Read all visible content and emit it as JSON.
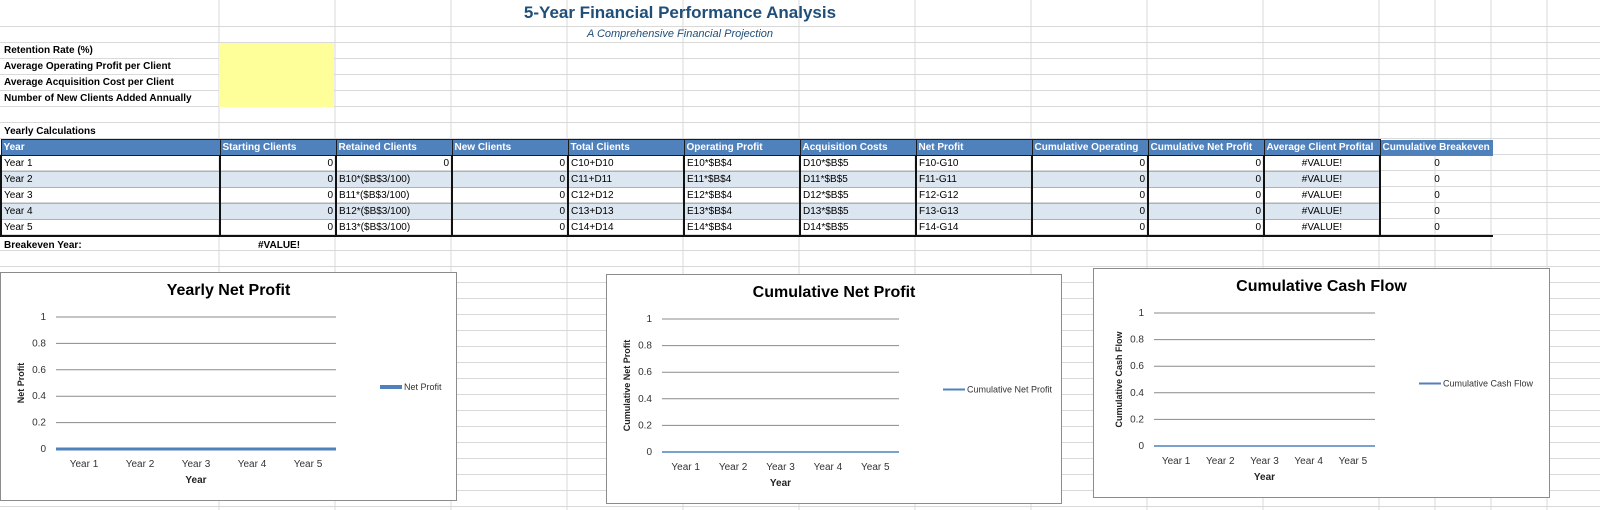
{
  "header": {
    "title": "5-Year Financial Performance Analysis",
    "subtitle": "A Comprehensive Financial Projection"
  },
  "inputs": [
    {
      "label": "Retention Rate (%)",
      "value": ""
    },
    {
      "label": "Average Operating Profit per Client",
      "value": ""
    },
    {
      "label": "Average Acquisition Cost per Client",
      "value": ""
    },
    {
      "label": "Number of New Clients Added Annually",
      "value": ""
    }
  ],
  "input_fill_color": "#FFFF99",
  "header_fill_color": "#4F81BD",
  "alt_row_color": "#DCE6F1",
  "section_label": "Yearly Calculations",
  "table": {
    "columns": [
      "Year",
      "Starting Clients",
      "Retained Clients",
      "New Clients",
      "Total Clients",
      "Operating Profit",
      "Acquisition Costs",
      "Net Profit",
      "Cumulative Operating",
      "Cumulative Net Profit",
      "Average Client Profital",
      "Cumulative Breakeven"
    ],
    "rows": [
      [
        "Year 1",
        "0",
        "0",
        "0",
        "C10+D10",
        "E10*$B$4",
        "D10*$B$5",
        "F10-G10",
        "0",
        "0",
        "#VALUE!",
        "0"
      ],
      [
        "Year 2",
        "0",
        "B10*($B$3/100)",
        "0",
        "C11+D11",
        "E11*$B$4",
        "D11*$B$5",
        "F11-G11",
        "0",
        "0",
        "#VALUE!",
        "0"
      ],
      [
        "Year 3",
        "0",
        "B11*($B$3/100)",
        "0",
        "C12+D12",
        "E12*$B$4",
        "D12*$B$5",
        "F12-G12",
        "0",
        "0",
        "#VALUE!",
        "0"
      ],
      [
        "Year 4",
        "0",
        "B12*($B$3/100)",
        "0",
        "C13+D13",
        "E13*$B$4",
        "D13*$B$5",
        "F13-G13",
        "0",
        "0",
        "#VALUE!",
        "0"
      ],
      [
        "Year 5",
        "0",
        "B13*($B$3/100)",
        "0",
        "C14+D14",
        "E14*$B$4",
        "D14*$B$5",
        "F14-G14",
        "0",
        "0",
        "#VALUE!",
        "0"
      ]
    ]
  },
  "breakeven": {
    "label": "Breakeven Year:",
    "value": "#VALUE!"
  },
  "chart_data": [
    {
      "type": "line",
      "title": "Yearly Net Profit",
      "categories": [
        "Year 1",
        "Year 2",
        "Year 3",
        "Year 4",
        "Year 5"
      ],
      "series": [
        {
          "name": "Net Profit",
          "values": [
            0,
            0,
            0,
            0,
            0
          ],
          "color": "#4F81BD"
        }
      ],
      "xlabel": "Year",
      "ylabel": "Net Profit",
      "ylim": [
        0,
        1
      ],
      "yticks": [
        "0",
        "0.2",
        "0.4",
        "0.6",
        "0.8",
        "1"
      ],
      "grid": true,
      "legend": "right"
    },
    {
      "type": "line",
      "title": "Cumulative Net Profit",
      "categories": [
        "Year 1",
        "Year 2",
        "Year 3",
        "Year 4",
        "Year 5"
      ],
      "series": [
        {
          "name": "Cumulative Net Profit",
          "values": [
            0,
            0,
            0,
            0,
            0
          ],
          "color": "#4F81BD"
        }
      ],
      "xlabel": "Year",
      "ylabel": "Cumulative Net Profit",
      "ylim": [
        0,
        1
      ],
      "yticks": [
        "0",
        "0.2",
        "0.4",
        "0.6",
        "0.8",
        "1"
      ],
      "grid": true,
      "legend": "right"
    },
    {
      "type": "line",
      "title": "Cumulative Cash Flow",
      "categories": [
        "Year 1",
        "Year 2",
        "Year 3",
        "Year 4",
        "Year 5"
      ],
      "series": [
        {
          "name": "Cumulative Cash Flow",
          "values": [
            0,
            0,
            0,
            0,
            0
          ],
          "color": "#4F81BD"
        }
      ],
      "xlabel": "Year",
      "ylabel": "Cumulative Cash Flow",
      "ylim": [
        0,
        1
      ],
      "yticks": [
        "0",
        "0.2",
        "0.4",
        "0.6",
        "0.8",
        "1"
      ],
      "grid": true,
      "legend": "right"
    }
  ]
}
